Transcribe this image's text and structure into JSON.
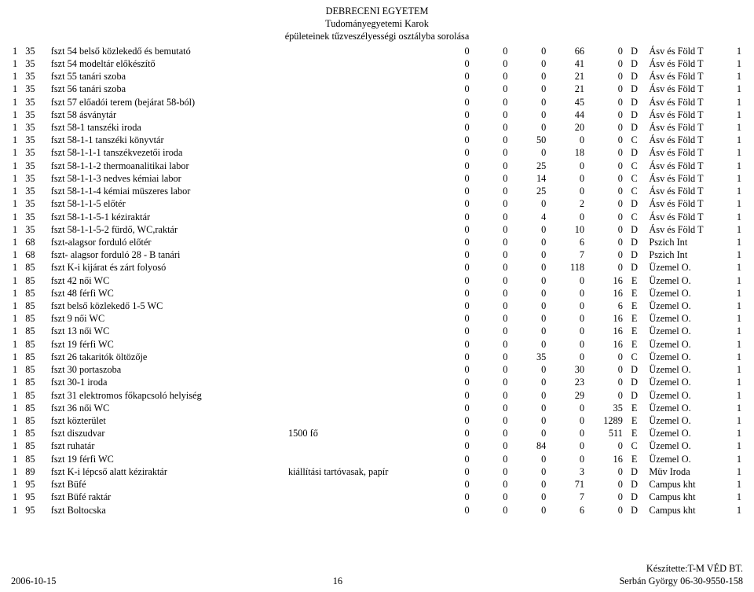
{
  "header": {
    "title": "DEBRECENI EGYETEM",
    "subtitle1": "Tudományegyetemi Karok",
    "subtitle2": "épületeinek tűzveszélyességi osztályba sorolása"
  },
  "footer": {
    "date": "2006-10-15",
    "page": "16",
    "maker": "Készítette:T-M VÉD BT.",
    "contact": "Serbán György 06-30-9550-158"
  },
  "rows": [
    {
      "a": "1",
      "b": "35",
      "name": "fszt 54 belső közlekedő és bemutató",
      "note": "",
      "n": [
        0,
        0,
        0,
        66,
        0
      ],
      "cls": "D",
      "grp": "Ásv és Föld T",
      "e": "1"
    },
    {
      "a": "1",
      "b": "35",
      "name": "fszt 54 modeltár előkészítő",
      "note": "",
      "n": [
        0,
        0,
        0,
        41,
        0
      ],
      "cls": "D",
      "grp": "Ásv és Föld T",
      "e": "1"
    },
    {
      "a": "1",
      "b": "35",
      "name": "fszt 55 tanári szoba",
      "note": "",
      "n": [
        0,
        0,
        0,
        21,
        0
      ],
      "cls": "D",
      "grp": "Ásv és Föld T",
      "e": "1"
    },
    {
      "a": "1",
      "b": "35",
      "name": "fszt 56 tanári szoba",
      "note": "",
      "n": [
        0,
        0,
        0,
        21,
        0
      ],
      "cls": "D",
      "grp": "Ásv és Föld T",
      "e": "1"
    },
    {
      "a": "1",
      "b": "35",
      "name": "fszt 57 előadói terem (bejárat 58-ból)",
      "note": "",
      "n": [
        0,
        0,
        0,
        45,
        0
      ],
      "cls": "D",
      "grp": "Ásv és Föld T",
      "e": "1"
    },
    {
      "a": "1",
      "b": "35",
      "name": "fszt 58 ásványtár",
      "note": "",
      "n": [
        0,
        0,
        0,
        44,
        0
      ],
      "cls": "D",
      "grp": "Ásv és Föld T",
      "e": "1"
    },
    {
      "a": "1",
      "b": "35",
      "name": "fszt 58-1 tanszéki iroda",
      "note": "",
      "n": [
        0,
        0,
        0,
        20,
        0
      ],
      "cls": "D",
      "grp": "Ásv és Föld T",
      "e": "1"
    },
    {
      "a": "1",
      "b": "35",
      "name": "fszt 58-1-1 tanszéki könyvtár",
      "note": "",
      "n": [
        0,
        0,
        50,
        0,
        0
      ],
      "cls": "C",
      "grp": "Ásv és Föld T",
      "e": "1"
    },
    {
      "a": "1",
      "b": "35",
      "name": "fszt 58-1-1-1 tanszékvezetői iroda",
      "note": "",
      "n": [
        0,
        0,
        0,
        18,
        0
      ],
      "cls": "D",
      "grp": "Ásv és Föld T",
      "e": "1"
    },
    {
      "a": "1",
      "b": "35",
      "name": "fszt 58-1-1-2 thermoanalitikai labor",
      "note": "",
      "n": [
        0,
        0,
        25,
        0,
        0
      ],
      "cls": "C",
      "grp": "Ásv és Föld T",
      "e": "1"
    },
    {
      "a": "1",
      "b": "35",
      "name": "fszt 58-1-1-3 nedves kémiai labor",
      "note": "",
      "n": [
        0,
        0,
        14,
        0,
        0
      ],
      "cls": "C",
      "grp": "Ásv és Föld T",
      "e": "1"
    },
    {
      "a": "1",
      "b": "35",
      "name": "fszt 58-1-1-4 kémiai müszeres labor",
      "note": "",
      "n": [
        0,
        0,
        25,
        0,
        0
      ],
      "cls": "C",
      "grp": "Ásv és Föld T",
      "e": "1"
    },
    {
      "a": "1",
      "b": "35",
      "name": "fszt 58-1-1-5 előtér",
      "note": "",
      "n": [
        0,
        0,
        0,
        2,
        0
      ],
      "cls": "D",
      "grp": "Ásv és Föld T",
      "e": "1"
    },
    {
      "a": "1",
      "b": "35",
      "name": "fszt 58-1-1-5-1 kéziraktár",
      "note": "",
      "n": [
        0,
        0,
        4,
        0,
        0
      ],
      "cls": "C",
      "grp": "Ásv és Föld T",
      "e": "1"
    },
    {
      "a": "1",
      "b": "35",
      "name": "fszt 58-1-1-5-2 fürdő, WC,raktár",
      "note": "",
      "n": [
        0,
        0,
        0,
        10,
        0
      ],
      "cls": "D",
      "grp": "Ásv és Föld T",
      "e": "1"
    },
    {
      "a": "1",
      "b": "68",
      "name": "fszt-alagsor forduló előtér",
      "note": "",
      "n": [
        0,
        0,
        0,
        6,
        0
      ],
      "cls": "D",
      "grp": "Pszich Int",
      "e": "1"
    },
    {
      "a": "1",
      "b": "68",
      "name": "fszt- alagsor forduló 28 - B  tanári",
      "note": "",
      "n": [
        0,
        0,
        0,
        7,
        0
      ],
      "cls": "D",
      "grp": "Pszich Int",
      "e": "1"
    },
    {
      "a": "1",
      "b": "85",
      "name": "fszt K-i kijárat és zárt folyosó",
      "note": "",
      "n": [
        0,
        0,
        0,
        118,
        0
      ],
      "cls": "D",
      "grp": "Üzemel O.",
      "e": "1"
    },
    {
      "a": "1",
      "b": "85",
      "name": "fszt 42 női WC",
      "note": "",
      "n": [
        0,
        0,
        0,
        0,
        16
      ],
      "cls": "E",
      "grp": "Üzemel O.",
      "e": "1"
    },
    {
      "a": "1",
      "b": "85",
      "name": "fszt 48 férfi WC",
      "note": "",
      "n": [
        0,
        0,
        0,
        0,
        16
      ],
      "cls": "E",
      "grp": "Üzemel O.",
      "e": "1"
    },
    {
      "a": "1",
      "b": "85",
      "name": "fszt belső közlekedő  1-5 WC",
      "note": "",
      "n": [
        0,
        0,
        0,
        0,
        6
      ],
      "cls": "E",
      "grp": "Üzemel O.",
      "e": "1"
    },
    {
      "a": "1",
      "b": "85",
      "name": "fszt 9 női WC",
      "note": "",
      "n": [
        0,
        0,
        0,
        0,
        16
      ],
      "cls": "E",
      "grp": "Üzemel O.",
      "e": "1"
    },
    {
      "a": "1",
      "b": "85",
      "name": "fszt 13 női WC",
      "note": "",
      "n": [
        0,
        0,
        0,
        0,
        16
      ],
      "cls": "E",
      "grp": "Üzemel O.",
      "e": "1"
    },
    {
      "a": "1",
      "b": "85",
      "name": "fszt 19 férfi WC",
      "note": "",
      "n": [
        0,
        0,
        0,
        0,
        16
      ],
      "cls": "E",
      "grp": "Üzemel O.",
      "e": "1"
    },
    {
      "a": "1",
      "b": "85",
      "name": "fszt 26 takaritók öltözője",
      "note": "",
      "n": [
        0,
        0,
        35,
        0,
        0
      ],
      "cls": "C",
      "grp": "Üzemel O.",
      "e": "1"
    },
    {
      "a": "1",
      "b": "85",
      "name": "fszt 30 portaszoba",
      "note": "",
      "n": [
        0,
        0,
        0,
        30,
        0
      ],
      "cls": "D",
      "grp": "Üzemel O.",
      "e": "1"
    },
    {
      "a": "1",
      "b": "85",
      "name": "fszt 30-1 iroda",
      "note": "",
      "n": [
        0,
        0,
        0,
        23,
        0
      ],
      "cls": "D",
      "grp": "Üzemel O.",
      "e": "1"
    },
    {
      "a": "1",
      "b": "85",
      "name": "fszt 31 elektromos főkapcsoló helyiség",
      "note": "",
      "n": [
        0,
        0,
        0,
        29,
        0
      ],
      "cls": "D",
      "grp": "Üzemel O.",
      "e": "1"
    },
    {
      "a": "1",
      "b": "85",
      "name": "fszt 36 női WC",
      "note": "",
      "n": [
        0,
        0,
        0,
        0,
        35
      ],
      "cls": "E",
      "grp": "Üzemel O.",
      "e": "1"
    },
    {
      "a": "1",
      "b": "85",
      "name": "fszt közterület",
      "note": "",
      "n": [
        0,
        0,
        0,
        0,
        1289
      ],
      "cls": "E",
      "grp": "Üzemel O.",
      "e": "1"
    },
    {
      "a": "1",
      "b": "85",
      "name": "fszt diszudvar",
      "note": "1500 fő",
      "n": [
        0,
        0,
        0,
        0,
        511
      ],
      "cls": "E",
      "grp": "Üzemel O.",
      "e": "1"
    },
    {
      "a": "1",
      "b": "85",
      "name": "fszt ruhatár",
      "note": "",
      "n": [
        0,
        0,
        84,
        0,
        0
      ],
      "cls": "C",
      "grp": "Üzemel O.",
      "e": "1"
    },
    {
      "a": "1",
      "b": "85",
      "name": "fszt 19 férfi WC",
      "note": "",
      "n": [
        0,
        0,
        0,
        0,
        16
      ],
      "cls": "E",
      "grp": "Üzemel O.",
      "e": "1"
    },
    {
      "a": "1",
      "b": "89",
      "name": "fszt K-i lépcső alatt kéziraktár",
      "note": "kiállítási tartóvasak, papír",
      "n": [
        0,
        0,
        0,
        3,
        0
      ],
      "cls": "D",
      "grp": "Müv Iroda",
      "e": "1"
    },
    {
      "a": "1",
      "b": "95",
      "name": "fszt Büfé",
      "note": "",
      "n": [
        0,
        0,
        0,
        71,
        0
      ],
      "cls": "D",
      "grp": "Campus kht",
      "e": "1"
    },
    {
      "a": "1",
      "b": "95",
      "name": "fszt Büfé raktár",
      "note": "",
      "n": [
        0,
        0,
        0,
        7,
        0
      ],
      "cls": "D",
      "grp": "Campus kht",
      "e": "1"
    },
    {
      "a": "1",
      "b": "95",
      "name": "fszt Boltocska",
      "note": "",
      "n": [
        0,
        0,
        0,
        6,
        0
      ],
      "cls": "D",
      "grp": "Campus kht",
      "e": "1"
    }
  ]
}
